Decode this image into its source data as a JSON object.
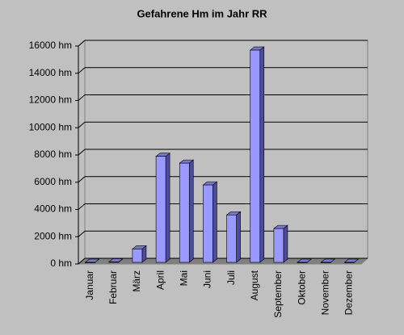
{
  "chart_data": {
    "type": "bar3d",
    "title": "Gefahrene Hm im Jahr RR",
    "categories": [
      "Januar",
      "Februar",
      "März",
      "April",
      "Mai",
      "Juni",
      "Juli",
      "August",
      "September",
      "Oktober",
      "November",
      "Dezember"
    ],
    "values": [
      0,
      150,
      1100,
      7900,
      7400,
      5800,
      3600,
      15700,
      2600,
      0,
      0,
      0
    ],
    "color": "#9999ff",
    "ylim": [
      0,
      16000
    ],
    "yticks": [
      {
        "value": 0,
        "label": "0 hm"
      },
      {
        "value": 2000,
        "label": "2000 hm"
      },
      {
        "value": 4000,
        "label": "4000 hm"
      },
      {
        "value": 6000,
        "label": "6000 hm"
      },
      {
        "value": 8000,
        "label": "8000 hm"
      },
      {
        "value": 10000,
        "label": "10000 hm"
      },
      {
        "value": 12000,
        "label": "12000 hm"
      },
      {
        "value": 14000,
        "label": "14000 hm"
      },
      {
        "value": 16000,
        "label": "16000 hm"
      }
    ],
    "grid": true
  }
}
